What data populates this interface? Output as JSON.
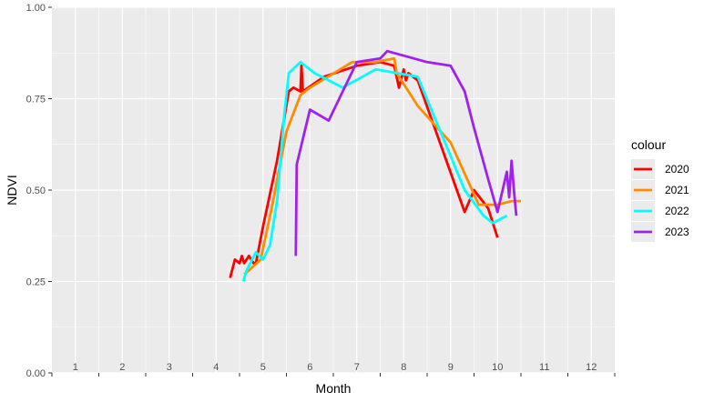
{
  "chart_data": {
    "type": "line",
    "xlabel": "Month",
    "ylabel": "NDVI",
    "xlim": [
      0.5,
      12.5
    ],
    "ylim": [
      0,
      1
    ],
    "x_ticks": [
      "1",
      "2",
      "3",
      "4",
      "5",
      "6",
      "7",
      "8",
      "9",
      "10",
      "11",
      "12"
    ],
    "y_ticks": [
      "0.00",
      "0.25",
      "0.50",
      "0.75",
      "1.00"
    ],
    "y_tick_values": [
      0,
      0.25,
      0.5,
      0.75,
      1
    ],
    "grid": true,
    "panel_background": "#ebebeb",
    "legend": {
      "title": "colour",
      "position": "right"
    },
    "series": [
      {
        "name": "2020",
        "color": "#ff0000",
        "points": [
          [
            4.3,
            0.26
          ],
          [
            4.4,
            0.31
          ],
          [
            4.5,
            0.3
          ],
          [
            4.55,
            0.32
          ],
          [
            4.6,
            0.3
          ],
          [
            4.7,
            0.32
          ],
          [
            4.75,
            0.31
          ],
          [
            4.8,
            0.3
          ],
          [
            4.85,
            0.3
          ],
          [
            5.0,
            0.4
          ],
          [
            5.3,
            0.58
          ],
          [
            5.55,
            0.77
          ],
          [
            5.65,
            0.78
          ],
          [
            5.8,
            0.77
          ],
          [
            5.82,
            0.84
          ],
          [
            5.85,
            0.77
          ],
          [
            6.3,
            0.81
          ],
          [
            7.0,
            0.84
          ],
          [
            7.5,
            0.85
          ],
          [
            7.8,
            0.84
          ],
          [
            7.9,
            0.78
          ],
          [
            8.0,
            0.83
          ],
          [
            8.05,
            0.8
          ],
          [
            8.1,
            0.82
          ],
          [
            8.3,
            0.8
          ],
          [
            9.3,
            0.44
          ],
          [
            9.5,
            0.5
          ],
          [
            9.8,
            0.45
          ],
          [
            10.0,
            0.37
          ]
        ]
      },
      {
        "name": "2021",
        "color": "#ff8c00",
        "points": [
          [
            4.6,
            0.27
          ],
          [
            4.7,
            0.28
          ],
          [
            4.95,
            0.31
          ],
          [
            5.2,
            0.46
          ],
          [
            5.5,
            0.66
          ],
          [
            5.8,
            0.76
          ],
          [
            6.0,
            0.78
          ],
          [
            6.9,
            0.85
          ],
          [
            7.4,
            0.85
          ],
          [
            7.8,
            0.86
          ],
          [
            7.85,
            0.82
          ],
          [
            8.0,
            0.79
          ],
          [
            8.3,
            0.73
          ],
          [
            9.0,
            0.63
          ],
          [
            9.6,
            0.46
          ],
          [
            10.0,
            0.46
          ],
          [
            10.3,
            0.47
          ],
          [
            10.5,
            0.47
          ]
        ]
      },
      {
        "name": "2022",
        "color": "#00ffff",
        "points": [
          [
            4.58,
            0.25
          ],
          [
            4.65,
            0.28
          ],
          [
            4.85,
            0.33
          ],
          [
            5.0,
            0.31
          ],
          [
            5.15,
            0.35
          ],
          [
            5.3,
            0.47
          ],
          [
            5.45,
            0.7
          ],
          [
            5.55,
            0.82
          ],
          [
            5.8,
            0.85
          ],
          [
            6.1,
            0.82
          ],
          [
            6.7,
            0.78
          ],
          [
            7.4,
            0.83
          ],
          [
            8.3,
            0.81
          ],
          [
            9.3,
            0.5
          ],
          [
            9.7,
            0.43
          ],
          [
            9.9,
            0.41
          ],
          [
            10.2,
            0.43
          ]
        ]
      },
      {
        "name": "2023",
        "color": "#a020f0",
        "points": [
          [
            5.7,
            0.32
          ],
          [
            5.72,
            0.57
          ],
          [
            6.0,
            0.72
          ],
          [
            6.4,
            0.69
          ],
          [
            7.0,
            0.85
          ],
          [
            7.5,
            0.86
          ],
          [
            7.65,
            0.88
          ],
          [
            8.5,
            0.85
          ],
          [
            9.0,
            0.84
          ],
          [
            9.3,
            0.77
          ],
          [
            9.5,
            0.67
          ],
          [
            9.8,
            0.53
          ],
          [
            10.0,
            0.44
          ],
          [
            10.2,
            0.55
          ],
          [
            10.25,
            0.48
          ],
          [
            10.3,
            0.58
          ],
          [
            10.35,
            0.5
          ],
          [
            10.4,
            0.43
          ]
        ]
      }
    ]
  }
}
